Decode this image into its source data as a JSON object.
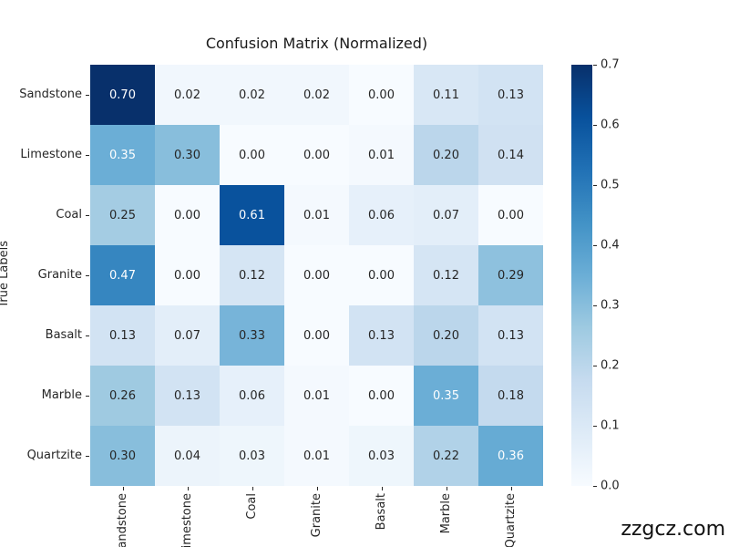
{
  "figure": {
    "watermark": "zzgcz.com"
  },
  "chart_data": {
    "type": "heatmap",
    "title": "Confusion Matrix (Normalized)",
    "ylabel": "True Labels",
    "x_categories": [
      "Sandstone",
      "Limestone",
      "Coal",
      "Granite",
      "Basalt",
      "Marble",
      "Quartzite"
    ],
    "y_categories": [
      "Sandstone",
      "Limestone",
      "Coal",
      "Granite",
      "Basalt",
      "Marble",
      "Quartzite"
    ],
    "values": [
      [
        0.7,
        0.02,
        0.02,
        0.02,
        0.0,
        0.11,
        0.13
      ],
      [
        0.35,
        0.3,
        0.0,
        0.0,
        0.01,
        0.2,
        0.14
      ],
      [
        0.25,
        0.0,
        0.61,
        0.01,
        0.06,
        0.07,
        0.0
      ],
      [
        0.47,
        0.0,
        0.12,
        0.0,
        0.0,
        0.12,
        0.29
      ],
      [
        0.13,
        0.07,
        0.33,
        0.0,
        0.13,
        0.2,
        0.13
      ],
      [
        0.26,
        0.13,
        0.06,
        0.01,
        0.0,
        0.35,
        0.18
      ],
      [
        0.3,
        0.04,
        0.03,
        0.01,
        0.03,
        0.22,
        0.36
      ]
    ],
    "value_format_decimals": 2,
    "vmin": 0.0,
    "vmax": 0.7,
    "colormap": "Blues",
    "colormap_stops": [
      "#f7fbff",
      "#deebf7",
      "#c6dbef",
      "#9ecae1",
      "#6baed6",
      "#4292c6",
      "#2171b5",
      "#08519c",
      "#08306b"
    ],
    "colorbar_ticks": [
      "0.7",
      "0.6",
      "0.5",
      "0.4",
      "0.3",
      "0.2",
      "0.1",
      "0.0"
    ],
    "annotation_colors": {
      "on_light": "#262626",
      "on_dark": "#ffffff"
    },
    "grid": false,
    "legend_position": "right-colorbar"
  }
}
